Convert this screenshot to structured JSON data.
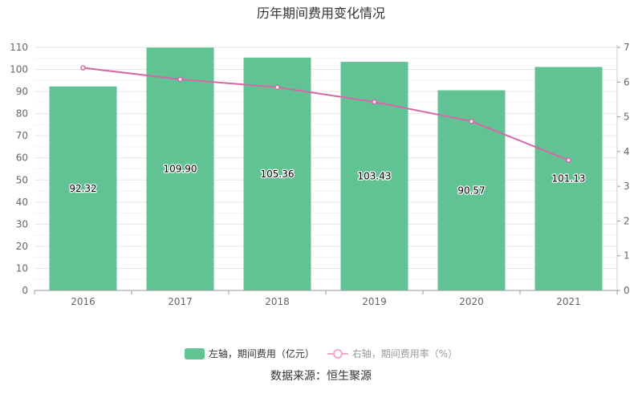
{
  "chart_data": {
    "type": "bar",
    "title": "历年期间费用变化情况",
    "categories": [
      "2016",
      "2017",
      "2018",
      "2019",
      "2020",
      "2021"
    ],
    "series": [
      {
        "name": "左轴，期间费用（亿元）",
        "type": "bar",
        "axis": "left",
        "values": [
          92.32,
          109.9,
          105.36,
          103.43,
          90.57,
          101.13
        ],
        "labels": [
          "92.32",
          "109.90",
          "105.36",
          "103.43",
          "90.57",
          "101.13"
        ],
        "color": "#61c393"
      },
      {
        "name": "右轴，期间费用率（%）",
        "type": "line",
        "axis": "right",
        "values": [
          6.41,
          6.08,
          5.85,
          5.43,
          4.87,
          3.75
        ],
        "color": "#d766a8"
      }
    ],
    "left_axis": {
      "min": 0,
      "max": 110,
      "ticks": [
        "0",
        "10",
        "20",
        "30",
        "40",
        "50",
        "60",
        "70",
        "80",
        "90",
        "100",
        "110"
      ]
    },
    "right_axis": {
      "min": 0,
      "max": 7,
      "ticks": [
        "0",
        "1",
        "2",
        "3",
        "4",
        "5",
        "6",
        "7"
      ]
    },
    "grid": true,
    "legend_position": "bottom"
  },
  "source": "数据来源：恒生聚源"
}
